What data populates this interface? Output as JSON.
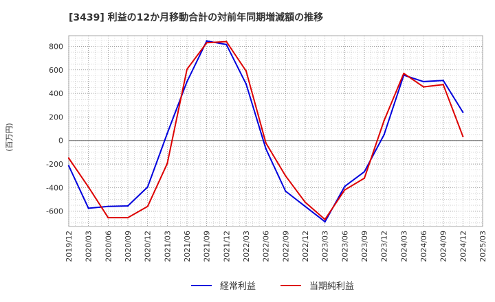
{
  "chart_data": {
    "type": "line",
    "title": "[3439]  利益の12か月移動合計の対前年同期増減額の推移",
    "ylabel": "(百万円)",
    "xlabel": "",
    "ylim": [
      -730,
      890
    ],
    "yticks": [
      800,
      600,
      400,
      200,
      0,
      -200,
      -400,
      -600
    ],
    "x": [
      "2019/12",
      "2020/03",
      "2020/06",
      "2020/09",
      "2020/12",
      "2021/03",
      "2021/06",
      "2021/09",
      "2021/12",
      "2022/03",
      "2022/06",
      "2022/09",
      "2022/12",
      "2023/03",
      "2023/06",
      "2023/09",
      "2023/12",
      "2024/03",
      "2024/06",
      "2024/09",
      "2024/12",
      "2025/03"
    ],
    "series": [
      {
        "name": "経常利益",
        "color": "#0000dd",
        "values": [
          -215,
          -575,
          -560,
          -555,
          -395,
          60,
          500,
          845,
          815,
          480,
          -70,
          -430,
          -560,
          -690,
          -390,
          -265,
          50,
          555,
          500,
          510,
          240,
          null
        ]
      },
      {
        "name": "当期純利益",
        "color": "#dd0000",
        "values": [
          -150,
          -395,
          -655,
          -655,
          -560,
          -195,
          605,
          830,
          840,
          590,
          -20,
          -300,
          -525,
          -670,
          -420,
          -320,
          170,
          570,
          455,
          475,
          35,
          null
        ]
      }
    ],
    "legend_position": "bottom-center",
    "grid": true
  }
}
